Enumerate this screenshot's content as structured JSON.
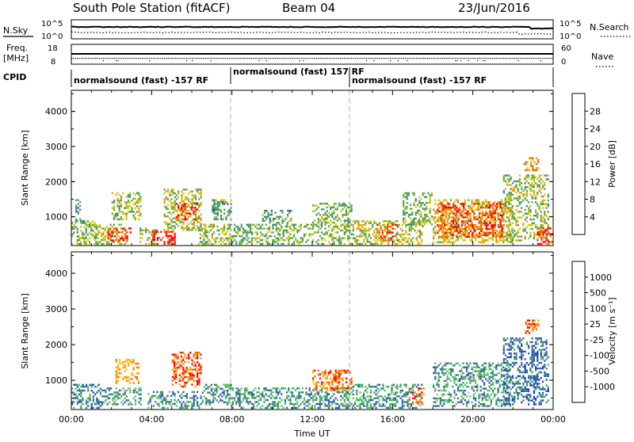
{
  "header": {
    "title": "South Pole Station (fitACF)",
    "beam": "Beam 04",
    "date": "23/Jun/2016"
  },
  "strip1": {
    "left_label": "N.Sky",
    "left_ticks": [
      "10^5",
      "10^0"
    ],
    "right_ticks": [
      "10^5",
      "10^0"
    ],
    "right_label": "N.Search"
  },
  "strip2": {
    "left_label_top": "Freq.",
    "left_label_bottom": "[MHz]",
    "left_ticks": [
      "18",
      "8"
    ],
    "right_ticks": [
      "60",
      "0"
    ],
    "right_label": "Nave"
  },
  "cpid": {
    "label": "CPID",
    "segments": [
      "normalsound (fast) -157 RF",
      "normalsound (fast) 157 RF",
      "normalsound (fast) -157 RF"
    ]
  },
  "colors": {
    "power": [
      "#0000ff",
      "#2450a0",
      "#3c8c6e",
      "#50a050",
      "#c8c800",
      "#f0a000",
      "#f06400",
      "#ff0000"
    ],
    "velocity": [
      "#ff0000",
      "#ff6400",
      "#ffa000",
      "#ffc800",
      "#b4b4b4",
      "#50c850",
      "#3c8c78",
      "#2c5aa8",
      "#1e3cc8"
    ]
  },
  "chart_data": [
    {
      "type": "heatmap",
      "panel": "power",
      "xlabel": "",
      "ylabel": "Slant Range [km]",
      "yticks": [
        "1000",
        "2000",
        "3000",
        "4000"
      ],
      "ylim": [
        180,
        4600
      ],
      "xlim_hours": [
        0,
        24
      ],
      "colorbar_label": "Power [dB]",
      "colorbar_ticks": [
        "4",
        "8",
        "12",
        "16",
        "20",
        "24",
        "28"
      ],
      "clim": [
        0,
        32
      ],
      "regions": [
        {
          "t": [
            0,
            1.3
          ],
          "r": [
            200,
            900
          ],
          "level": 0.45
        },
        {
          "t": [
            0.2,
            0.5
          ],
          "r": [
            900,
            1500
          ],
          "level": 0.4
        },
        {
          "t": [
            1.2,
            2.8
          ],
          "r": [
            200,
            800
          ],
          "level": 0.55
        },
        {
          "t": [
            1.8,
            3.0
          ],
          "r": [
            300,
            700
          ],
          "level": 0.9
        },
        {
          "t": [
            2.0,
            3.5
          ],
          "r": [
            900,
            1700
          ],
          "level": 0.5
        },
        {
          "t": [
            3.4,
            4.3
          ],
          "r": [
            200,
            700
          ],
          "level": 0.55
        },
        {
          "t": [
            4.0,
            5.2
          ],
          "r": [
            200,
            600
          ],
          "level": 0.95
        },
        {
          "t": [
            4.6,
            6.5
          ],
          "r": [
            600,
            1800
          ],
          "level": 0.55
        },
        {
          "t": [
            5.2,
            6.3
          ],
          "r": [
            900,
            1400
          ],
          "level": 0.85
        },
        {
          "t": [
            6.3,
            8.0
          ],
          "r": [
            200,
            800
          ],
          "level": 0.5
        },
        {
          "t": [
            7.0,
            8.0
          ],
          "r": [
            900,
            1500
          ],
          "level": 0.4
        },
        {
          "t": [
            8.0,
            14.0
          ],
          "r": [
            200,
            800
          ],
          "level": 0.45
        },
        {
          "t": [
            9.5,
            11.0
          ],
          "r": [
            800,
            1200
          ],
          "level": 0.4
        },
        {
          "t": [
            12.0,
            14.0
          ],
          "r": [
            700,
            1400
          ],
          "level": 0.45
        },
        {
          "t": [
            14.0,
            17.5
          ],
          "r": [
            200,
            900
          ],
          "level": 0.55
        },
        {
          "t": [
            15.2,
            16.3
          ],
          "r": [
            300,
            800
          ],
          "level": 0.85
        },
        {
          "t": [
            16.5,
            18.0
          ],
          "r": [
            700,
            1700
          ],
          "level": 0.45
        },
        {
          "t": [
            18.0,
            22.0
          ],
          "r": [
            250,
            1500
          ],
          "level": 0.62
        },
        {
          "t": [
            18.2,
            21.5
          ],
          "r": [
            400,
            1400
          ],
          "level": 0.88
        },
        {
          "t": [
            21.5,
            23.8
          ],
          "r": [
            300,
            2200
          ],
          "level": 0.5
        },
        {
          "t": [
            22.5,
            23.3
          ],
          "r": [
            2300,
            2700
          ],
          "level": 0.7
        },
        {
          "t": [
            23.2,
            24.0
          ],
          "r": [
            200,
            700
          ],
          "level": 0.9
        }
      ]
    },
    {
      "type": "heatmap",
      "panel": "velocity",
      "xlabel": "Time UT",
      "xticks": [
        "00:00",
        "04:00",
        "08:00",
        "12:00",
        "16:00",
        "20:00",
        "00:00"
      ],
      "ylabel": "Slant Range [km]",
      "yticks": [
        "1000",
        "2000",
        "3000",
        "4000"
      ],
      "ylim": [
        180,
        4600
      ],
      "xlim_hours": [
        0,
        24
      ],
      "colorbar_label": "Velocity [m s⁻¹]",
      "colorbar_ticks": [
        "1000",
        "500",
        "100",
        "25",
        "-25",
        "-100",
        "-500",
        "-1000"
      ],
      "regions": [
        {
          "t": [
            0,
            1.5
          ],
          "r": [
            200,
            900
          ],
          "level": 0.78
        },
        {
          "t": [
            1.5,
            3.5
          ],
          "r": [
            300,
            800
          ],
          "level": 0.7
        },
        {
          "t": [
            2.2,
            3.4
          ],
          "r": [
            900,
            1600
          ],
          "level": 0.3
        },
        {
          "t": [
            3.8,
            6.5
          ],
          "r": [
            200,
            700
          ],
          "level": 0.75
        },
        {
          "t": [
            5.0,
            6.5
          ],
          "r": [
            800,
            1800
          ],
          "level": 0.15
        },
        {
          "t": [
            6.5,
            8.0
          ],
          "r": [
            300,
            900
          ],
          "level": 0.7
        },
        {
          "t": [
            8.0,
            14.0
          ],
          "r": [
            200,
            800
          ],
          "level": 0.72
        },
        {
          "t": [
            12.0,
            14.0
          ],
          "r": [
            700,
            1300
          ],
          "level": 0.2
        },
        {
          "t": [
            14.0,
            17.5
          ],
          "r": [
            200,
            900
          ],
          "level": 0.72
        },
        {
          "t": [
            16.8,
            17.6
          ],
          "r": [
            300,
            800
          ],
          "level": 0.15
        },
        {
          "t": [
            18.0,
            22.0
          ],
          "r": [
            250,
            1500
          ],
          "level": 0.7
        },
        {
          "t": [
            21.5,
            23.8
          ],
          "r": [
            300,
            2200
          ],
          "level": 0.82
        },
        {
          "t": [
            22.6,
            23.3
          ],
          "r": [
            2300,
            2700
          ],
          "level": 0.15
        }
      ]
    }
  ]
}
